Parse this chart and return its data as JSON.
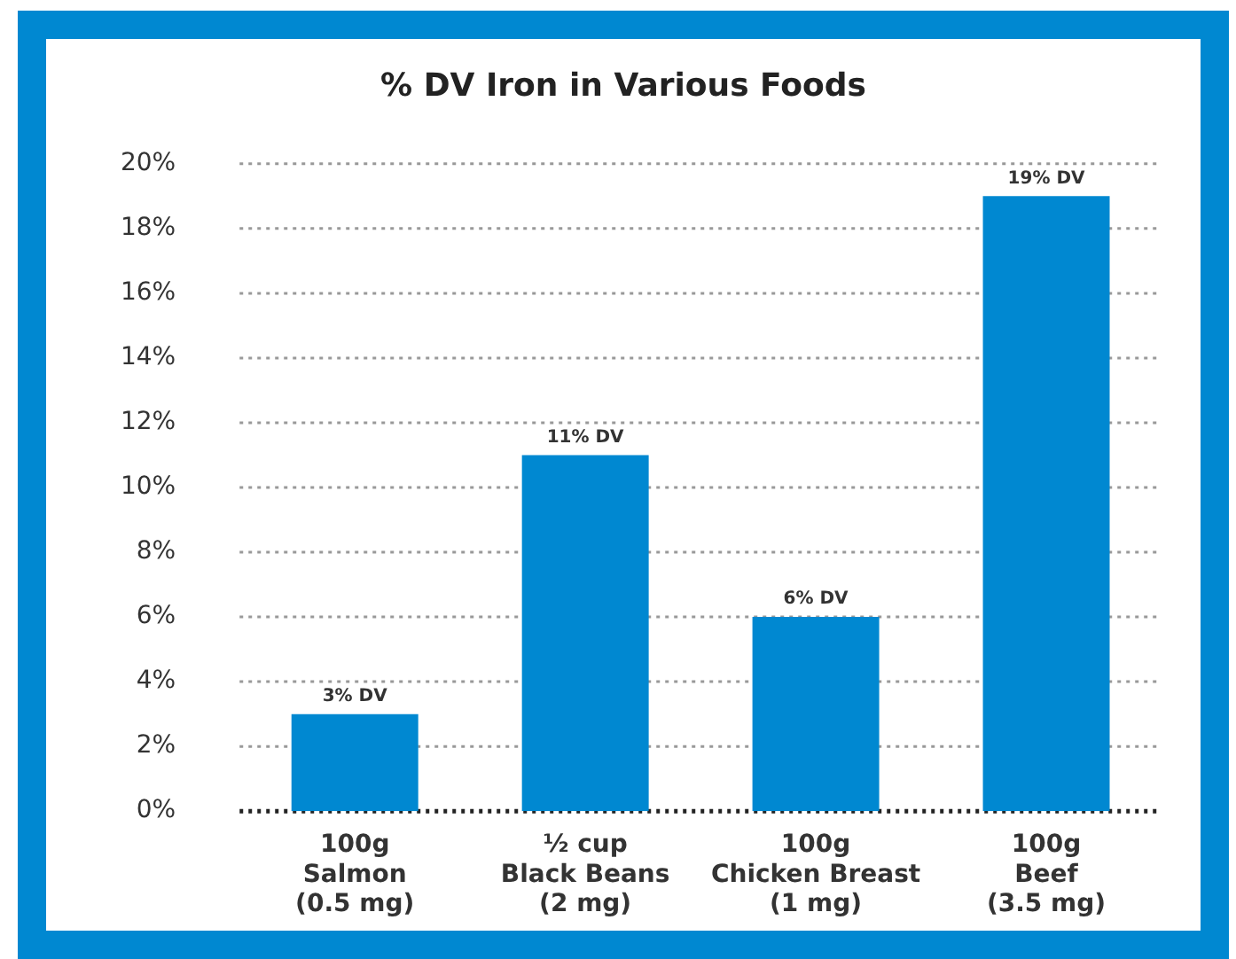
{
  "chart_data": {
    "type": "bar",
    "title": "% DV Iron in Various Foods",
    "categories": [
      "100g\nSalmon\n(0.5 mg)",
      "½ cup\nBlack Beans\n(2 mg)",
      "100g\nChicken Breast\n(1 mg)",
      "100g\nBeef\n(3.5 mg)"
    ],
    "values": [
      3,
      11,
      6,
      19
    ],
    "value_labels": [
      "3% DV",
      "11% DV",
      "6% DV",
      "19% DV"
    ],
    "color": "#0088d1",
    "ylim": [
      0,
      20
    ],
    "yticks": [
      {
        "value": 0,
        "label": "0%"
      },
      {
        "value": 2,
        "label": "2%"
      },
      {
        "value": 4,
        "label": "4%"
      },
      {
        "value": 6,
        "label": "6%"
      },
      {
        "value": 8,
        "label": "8%"
      },
      {
        "value": 10,
        "label": "10%"
      },
      {
        "value": 12,
        "label": "12%"
      },
      {
        "value": 14,
        "label": "14%"
      },
      {
        "value": 16,
        "label": "16%"
      },
      {
        "value": 18,
        "label": "18%"
      },
      {
        "value": 20,
        "label": "20%"
      }
    ],
    "grid": "y",
    "legend": false
  }
}
